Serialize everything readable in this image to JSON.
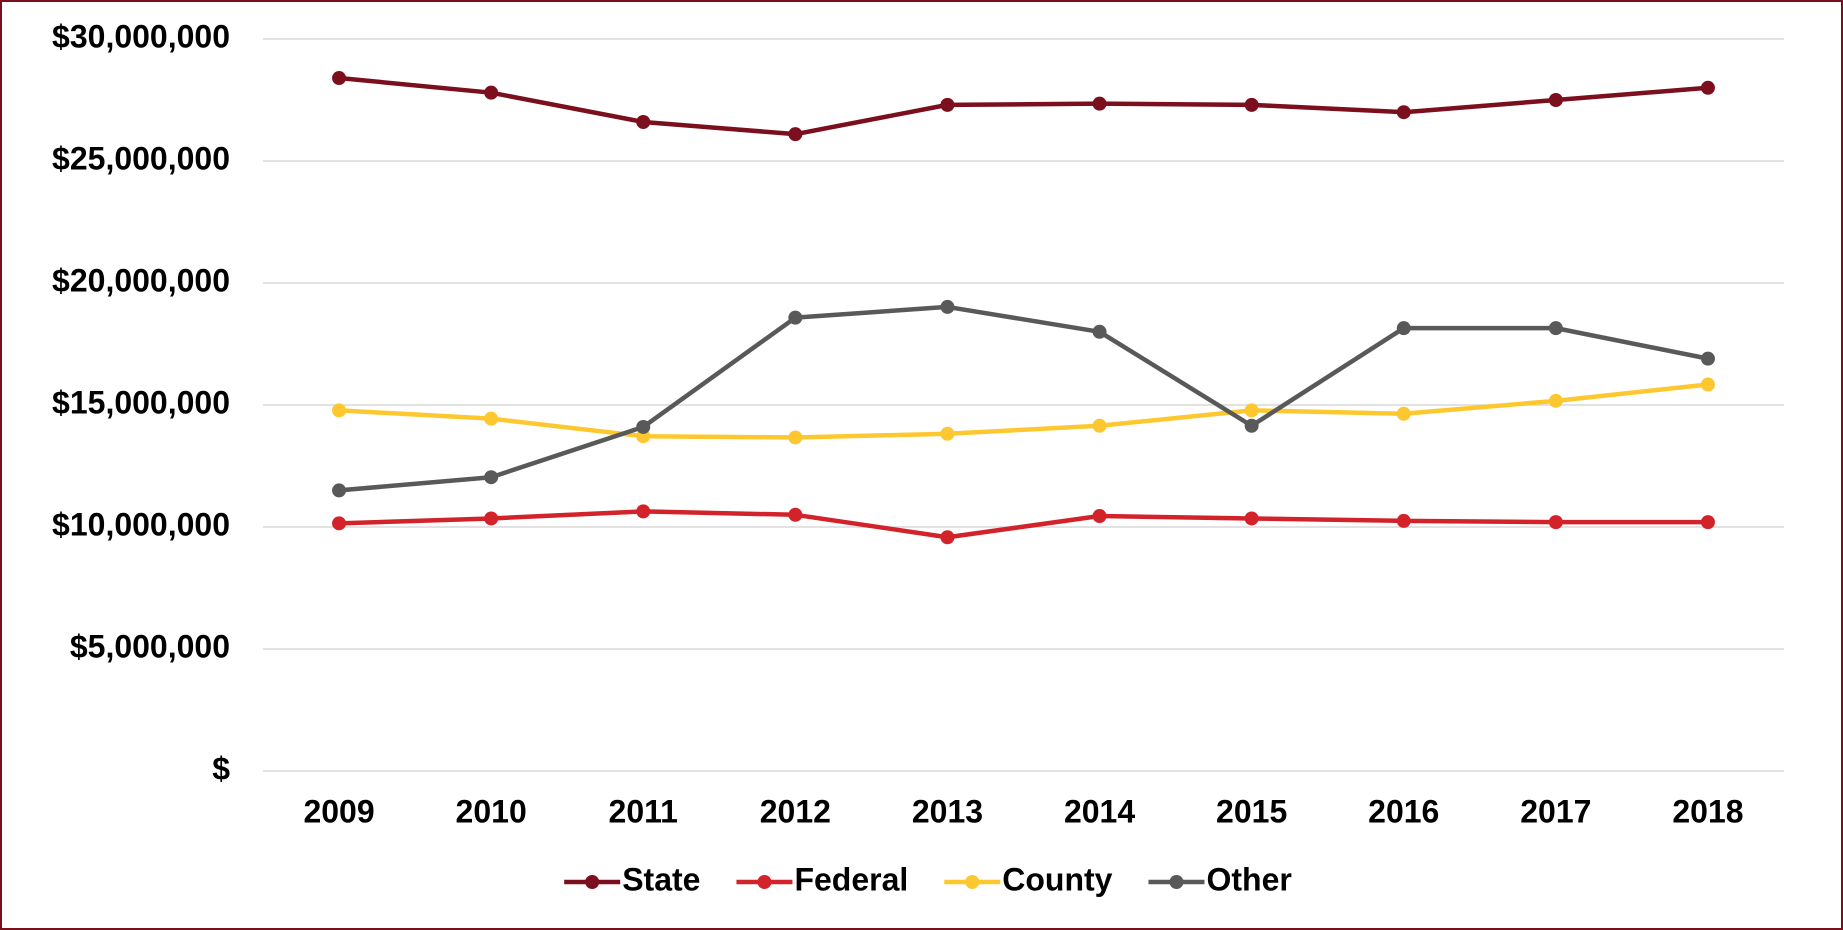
{
  "chart_data": {
    "type": "line",
    "categories": [
      "2009",
      "2010",
      "2011",
      "2012",
      "2013",
      "2014",
      "2015",
      "2016",
      "2017",
      "2018"
    ],
    "series": [
      {
        "name": "State",
        "color": "#7b0f1e",
        "values": [
          28400000,
          27800000,
          26600000,
          26100000,
          27300000,
          27350000,
          27300000,
          27000000,
          27500000,
          28000000
        ]
      },
      {
        "name": "Federal",
        "color": "#d2232a",
        "values": [
          10150000,
          10350000,
          10640000,
          10500000,
          9580000,
          10450000,
          10350000,
          10250000,
          10200000,
          10200000
        ]
      },
      {
        "name": "County",
        "color": "#fdc82f",
        "values": [
          14780000,
          14440000,
          13720000,
          13670000,
          13820000,
          14150000,
          14780000,
          14640000,
          15170000,
          15840000
        ]
      },
      {
        "name": "Other",
        "color": "#595959",
        "values": [
          11500000,
          12040000,
          14100000,
          18580000,
          19020000,
          18000000,
          14150000,
          18150000,
          18150000,
          16900000
        ]
      }
    ],
    "ylim": [
      0,
      30000000
    ],
    "yticks": [
      {
        "value": 0,
        "label": "$"
      },
      {
        "value": 5000000,
        "label": "$5,000,000"
      },
      {
        "value": 10000000,
        "label": "$10,000,000"
      },
      {
        "value": 15000000,
        "label": "$15,000,000"
      },
      {
        "value": 20000000,
        "label": "$20,000,000"
      },
      {
        "value": 25000000,
        "label": "$25,000,000"
      },
      {
        "value": 30000000,
        "label": "$30,000,000"
      }
    ],
    "grid": true,
    "legend": "bottom"
  }
}
